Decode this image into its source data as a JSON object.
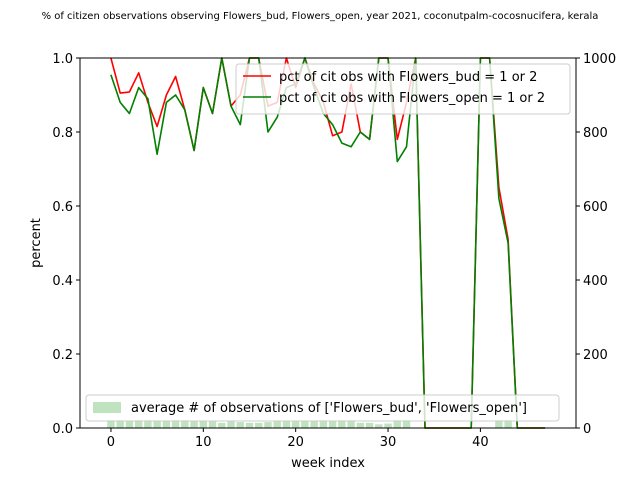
{
  "chart_data": {
    "type": "line",
    "title": "% of citizen observations observing Flowers_bud, Flowers_open, year 2021, coconutpalm-cocosnucifera, kerala",
    "xlabel": "week index",
    "ylabel": "percent",
    "xlim": [
      -3.35,
      50.35
    ],
    "ylim": [
      0,
      1
    ],
    "y2lim": [
      0,
      1000
    ],
    "xticks": [
      0,
      10,
      20,
      30,
      40
    ],
    "yticks": [
      "0.0",
      "0.2",
      "0.4",
      "0.6",
      "0.8",
      "1.0"
    ],
    "y2ticks": [
      "0",
      "200",
      "400",
      "600",
      "800",
      "1000"
    ],
    "legend_upper": [
      "pct of cit obs with Flowers_bud = 1 or 2",
      "pct of cit obs with Flowers_open = 1 or 2"
    ],
    "legend_lower": [
      "average # of observations of ['Flowers_bud', 'Flowers_open']"
    ],
    "colors": {
      "bud": "#ff0000",
      "open": "#008000",
      "bars": "#2ca02c"
    },
    "series": [
      {
        "name": "pct of cit obs with Flowers_bud = 1 or 2",
        "x": [
          0,
          1,
          2,
          3,
          4,
          5,
          6,
          7,
          8,
          9,
          10,
          11,
          12,
          13,
          14,
          15,
          16,
          17,
          18,
          19,
          20,
          21,
          22,
          23,
          24,
          25,
          26,
          27,
          28,
          29,
          30,
          31,
          32,
          33,
          34,
          35,
          36,
          37,
          38,
          39,
          40,
          41,
          42,
          43,
          44,
          45,
          46,
          47
        ],
        "y": [
          1.0,
          0.905,
          0.908,
          0.96,
          0.88,
          0.815,
          0.9,
          0.95,
          0.86,
          0.75,
          0.92,
          0.85,
          1.0,
          0.87,
          0.9,
          1.0,
          1.0,
          0.87,
          0.88,
          1.0,
          0.92,
          1.0,
          0.93,
          0.88,
          0.79,
          0.8,
          0.93,
          0.8,
          0.78,
          1.0,
          1.0,
          0.78,
          0.88,
          1.0,
          0.0,
          0.0,
          0.0,
          0.0,
          0.0,
          0.0,
          1.0,
          1.0,
          0.65,
          0.51,
          0.0,
          0.0,
          0.0,
          0.0
        ]
      },
      {
        "name": "pct of cit obs with Flowers_open = 1 or 2",
        "x": [
          0,
          1,
          2,
          3,
          4,
          5,
          6,
          7,
          8,
          9,
          10,
          11,
          12,
          13,
          14,
          15,
          16,
          17,
          18,
          19,
          20,
          21,
          22,
          23,
          24,
          25,
          26,
          27,
          28,
          29,
          30,
          31,
          32,
          33,
          34,
          35,
          36,
          37,
          38,
          39,
          40,
          41,
          42,
          43,
          44,
          45,
          46,
          47
        ],
        "y": [
          0.955,
          0.88,
          0.85,
          0.92,
          0.89,
          0.74,
          0.88,
          0.9,
          0.86,
          0.75,
          0.92,
          0.85,
          1.0,
          0.87,
          0.82,
          1.0,
          1.0,
          0.8,
          0.84,
          0.92,
          0.93,
          1.0,
          0.92,
          0.85,
          0.82,
          0.77,
          0.76,
          0.8,
          0.78,
          1.0,
          1.0,
          0.72,
          0.76,
          1.0,
          0.0,
          0.0,
          0.0,
          0.0,
          0.0,
          0.0,
          1.0,
          1.0,
          0.62,
          0.5,
          0.0,
          0.0,
          0.0,
          0.0
        ]
      },
      {
        "name": "average # of observations of ['Flowers_bud', 'Flowers_open']",
        "type": "bar",
        "x": [
          0,
          1,
          2,
          3,
          4,
          5,
          6,
          7,
          8,
          9,
          10,
          11,
          12,
          13,
          14,
          15,
          16,
          17,
          18,
          19,
          20,
          21,
          22,
          23,
          24,
          25,
          26,
          27,
          28,
          29,
          30,
          31,
          32,
          33,
          34,
          35,
          36,
          37,
          38,
          39,
          40,
          41,
          42,
          43,
          44,
          45,
          46,
          47
        ],
        "values": [
          22,
          22,
          20,
          22,
          22,
          18,
          18,
          22,
          22,
          20,
          18,
          18,
          14,
          18,
          16,
          14,
          14,
          16,
          20,
          18,
          20,
          18,
          20,
          22,
          20,
          22,
          22,
          14,
          14,
          10,
          12,
          22,
          22,
          0,
          0,
          0,
          0,
          0,
          0,
          0,
          0,
          0,
          22,
          22,
          0,
          0,
          0,
          0
        ]
      }
    ],
    "grid": false,
    "legend_placement": "upper right and lower left"
  }
}
